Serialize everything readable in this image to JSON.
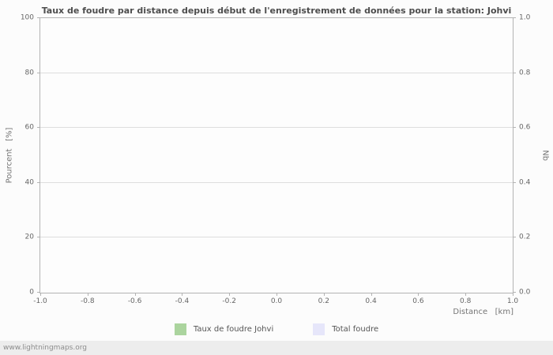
{
  "chart_data": {
    "type": "bar",
    "title": "Taux de foudre par distance depuis début de l'enregistrement de données pour la station: Johvi",
    "xlabel": "Distance   [km]",
    "ylabel_left": "Pourcent   [%]",
    "ylabel_right": "Nb",
    "xlim": [
      -1.0,
      1.0
    ],
    "xtick_labels": [
      "-1.0",
      "-0.8",
      "-0.6",
      "-0.4",
      "-0.2",
      "0.0",
      "0.2",
      "0.4",
      "0.6",
      "0.8",
      "1.0"
    ],
    "ylim_left": [
      0,
      100
    ],
    "ytick_labels_left": [
      "0",
      "20",
      "40",
      "60",
      "80",
      "100"
    ],
    "ylim_right": [
      0.0,
      1.0
    ],
    "ytick_labels_right": [
      "0.0",
      "0.2",
      "0.4",
      "0.6",
      "0.8",
      "1.0"
    ],
    "grid": true,
    "legend_position": "bottom-center",
    "series": [
      {
        "name": "Taux de foudre Johvi",
        "color": "#abd49e",
        "values": []
      },
      {
        "name": "Total foudre",
        "color": "#e6e6fa",
        "values": []
      }
    ]
  },
  "footer": {
    "watermark": "www.lightningmaps.org"
  }
}
